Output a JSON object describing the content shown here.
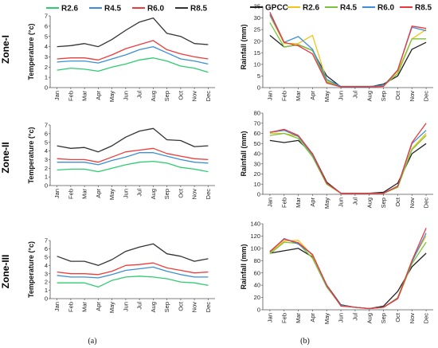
{
  "colors": {
    "R2.6": "#2ecc71",
    "R4.5": "#d9c11a",
    "R6.0": "#ee3b3b",
    "R8.5": "#333333",
    "R4.5_rain": "#7cc23a",
    "R6.0_rain": "#3a8fd8",
    "R8.5_rain": "#e8383d",
    "GPCC": "#222222",
    "R2.6_rain": "#f2c318",
    "temp_R2.6": "#2ecc71",
    "temp_R4.5": "#3a8fd8",
    "temp_R6.0": "#ee3b3b",
    "temp_R8.5": "#333333"
  },
  "legend_a": [
    {
      "name": "R2.6",
      "color": "#2ecc71"
    },
    {
      "name": "R4.5",
      "color": "#3a8fd8"
    },
    {
      "name": "R6.0",
      "color": "#ee3b3b"
    },
    {
      "name": "R8.5",
      "color": "#333333"
    }
  ],
  "legend_b": [
    {
      "name": "GPCC",
      "color": "#222222"
    },
    {
      "name": "R2.6",
      "color": "#f2c318"
    },
    {
      "name": "R4.5",
      "color": "#7cc23a"
    },
    {
      "name": "R6.0",
      "color": "#3a8fd8"
    },
    {
      "name": "R8.5",
      "color": "#e8383d"
    }
  ],
  "zones": [
    "Zone-I",
    "Zone-II",
    "Zone-III"
  ],
  "captions": {
    "a": "(a)",
    "b": "(b)"
  },
  "chart_data": [
    {
      "type": "line",
      "id": "temp-zone-1",
      "categories": [
        "Jan",
        "Feb",
        "Mar",
        "Apr",
        "May",
        "Jun",
        "Jul",
        "Aug",
        "Sep",
        "Oct",
        "Nov",
        "Dec"
      ],
      "ylabel": "Temperature (°c)",
      "ylim": [
        0,
        7
      ],
      "yticks": [
        0,
        1,
        2,
        3,
        4,
        5,
        6,
        7
      ],
      "series": [
        {
          "name": "R2.6",
          "color": "#2ecc71",
          "values": [
            1.7,
            1.9,
            1.8,
            1.6,
            2.0,
            2.3,
            2.7,
            2.9,
            2.6,
            2.1,
            1.9,
            1.5
          ]
        },
        {
          "name": "R4.5",
          "color": "#3a8fd8",
          "values": [
            2.5,
            2.6,
            2.6,
            2.4,
            2.8,
            3.2,
            3.7,
            4.0,
            3.4,
            2.8,
            2.6,
            2.3
          ]
        },
        {
          "name": "R6.0",
          "color": "#ee3b3b",
          "values": [
            2.8,
            2.9,
            2.9,
            2.7,
            3.2,
            3.8,
            4.2,
            4.6,
            3.7,
            3.3,
            3.0,
            2.8
          ]
        },
        {
          "name": "R8.5",
          "color": "#333333",
          "values": [
            4.0,
            4.1,
            4.3,
            4.0,
            4.7,
            5.6,
            6.4,
            6.8,
            5.3,
            5.0,
            4.3,
            4.2
          ]
        }
      ]
    },
    {
      "type": "line",
      "id": "temp-zone-2",
      "categories": [
        "Jan",
        "Feb",
        "Mar",
        "Apr",
        "May",
        "Jun",
        "Jul",
        "Aug",
        "Sep",
        "Oct",
        "Nov",
        "Dec"
      ],
      "ylabel": "Temperature (°c)",
      "ylim": [
        0,
        7
      ],
      "yticks": [
        0,
        1,
        2,
        3,
        4,
        5,
        6,
        7
      ],
      "series": [
        {
          "name": "R2.6",
          "color": "#2ecc71",
          "values": [
            1.8,
            1.9,
            1.9,
            1.6,
            2.0,
            2.4,
            2.7,
            2.8,
            2.6,
            2.1,
            1.9,
            1.6
          ]
        },
        {
          "name": "R4.5",
          "color": "#3a8fd8",
          "values": [
            2.7,
            2.7,
            2.7,
            2.4,
            2.9,
            3.3,
            3.8,
            3.8,
            3.4,
            3.0,
            2.7,
            2.6
          ]
        },
        {
          "name": "R6.0",
          "color": "#ee3b3b",
          "values": [
            3.1,
            3.0,
            3.0,
            2.7,
            3.3,
            3.9,
            4.1,
            4.3,
            3.7,
            3.4,
            3.1,
            3.0
          ]
        },
        {
          "name": "R8.5",
          "color": "#333333",
          "values": [
            4.6,
            4.3,
            4.4,
            3.9,
            4.6,
            5.6,
            6.3,
            6.6,
            5.3,
            5.2,
            4.5,
            4.6
          ]
        }
      ]
    },
    {
      "type": "line",
      "id": "temp-zone-3",
      "categories": [
        "Jan",
        "Feb",
        "Mar",
        "Apr",
        "May",
        "Jun",
        "Jul",
        "Aug",
        "Sep",
        "Oct",
        "Nov",
        "Dec"
      ],
      "ylabel": "Temperature (°c)",
      "ylim": [
        0,
        7
      ],
      "yticks": [
        0,
        1,
        2,
        3,
        4,
        5,
        6,
        7
      ],
      "series": [
        {
          "name": "R2.6",
          "color": "#2ecc71",
          "values": [
            1.9,
            1.9,
            1.9,
            1.4,
            2.2,
            2.6,
            2.7,
            2.6,
            2.4,
            2.0,
            1.9,
            1.6
          ]
        },
        {
          "name": "R4.5",
          "color": "#3a8fd8",
          "values": [
            2.8,
            2.6,
            2.6,
            2.5,
            2.9,
            3.4,
            3.6,
            3.8,
            3.3,
            2.9,
            2.6,
            2.6
          ]
        },
        {
          "name": "R6.0",
          "color": "#ee3b3b",
          "values": [
            3.2,
            3.0,
            3.0,
            2.9,
            3.3,
            4.0,
            4.1,
            4.3,
            3.7,
            3.4,
            3.1,
            3.2
          ]
        },
        {
          "name": "R8.5",
          "color": "#333333",
          "values": [
            5.1,
            4.5,
            4.5,
            4.0,
            4.7,
            5.7,
            6.2,
            6.6,
            5.4,
            5.1,
            4.5,
            4.8
          ]
        }
      ]
    },
    {
      "type": "line",
      "id": "rain-zone-1",
      "categories": [
        "Jan",
        "Feb",
        "Mar",
        "Apr",
        "May",
        "Jun",
        "Jul",
        "Aug",
        "Sep",
        "Oct",
        "Nov",
        "Dec"
      ],
      "ylabel": "Rainfall (mm)",
      "ylim": [
        0,
        35
      ],
      "yticks": [
        0,
        5,
        10,
        15,
        20,
        25,
        30,
        35
      ],
      "series": [
        {
          "name": "GPCC",
          "color": "#222222",
          "values": [
            22.5,
            17.5,
            18.5,
            16.0,
            5.0,
            0.3,
            0.3,
            0.3,
            1.5,
            5.0,
            16.5,
            19.5
          ]
        },
        {
          "name": "R2.6",
          "color": "#f2c318",
          "values": [
            31.0,
            19.0,
            19.0,
            22.5,
            3.0,
            0.5,
            0.5,
            0.5,
            0.8,
            7.0,
            21.0,
            25.0
          ]
        },
        {
          "name": "R4.5",
          "color": "#7cc23a",
          "values": [
            28.0,
            17.5,
            18.5,
            16.0,
            2.5,
            0.5,
            0.5,
            0.5,
            0.8,
            6.0,
            21.0,
            21.0
          ]
        },
        {
          "name": "R6.0",
          "color": "#3a8fd8",
          "values": [
            31.5,
            19.5,
            22.0,
            16.5,
            3.5,
            0.5,
            0.5,
            0.5,
            0.8,
            7.5,
            26.0,
            24.5
          ]
        },
        {
          "name": "R8.5",
          "color": "#e8383d",
          "values": [
            32.5,
            19.5,
            18.0,
            14.5,
            2.0,
            0.3,
            0.3,
            0.3,
            0.5,
            7.5,
            26.5,
            25.5
          ]
        }
      ]
    },
    {
      "type": "line",
      "id": "rain-zone-2",
      "categories": [
        "Jan",
        "Feb",
        "Mar",
        "Apr",
        "May",
        "Jun",
        "Jul",
        "Aug",
        "Sep",
        "Oct",
        "Nov",
        "Dec"
      ],
      "ylabel": "Rainfall (mm)",
      "ylim": [
        0,
        80
      ],
      "yticks": [
        0,
        10,
        20,
        30,
        40,
        50,
        60,
        70,
        80
      ],
      "series": [
        {
          "name": "GPCC",
          "color": "#222222",
          "values": [
            53,
            51,
            53,
            40,
            12,
            1,
            1,
            1,
            2,
            11,
            40,
            50
          ]
        },
        {
          "name": "R2.6",
          "color": "#f2c318",
          "values": [
            60,
            60,
            57,
            38,
            10,
            1,
            1,
            1,
            1,
            7,
            45,
            60
          ]
        },
        {
          "name": "R4.5",
          "color": "#7cc23a",
          "values": [
            58,
            60,
            55,
            37,
            10,
            1,
            1,
            1,
            1,
            7,
            44,
            58
          ]
        },
        {
          "name": "R6.0",
          "color": "#3a8fd8",
          "values": [
            61,
            63,
            57,
            39,
            11,
            1,
            1,
            1,
            1,
            8,
            50,
            63
          ]
        },
        {
          "name": "R8.5",
          "color": "#e8383d",
          "values": [
            61,
            64,
            58,
            40,
            11,
            1,
            1,
            1,
            1,
            8,
            51,
            70
          ]
        }
      ]
    },
    {
      "type": "line",
      "id": "rain-zone-3",
      "categories": [
        "Jan",
        "Feb",
        "Mar",
        "Apr",
        "May",
        "Jun",
        "Jul",
        "Aug",
        "Sep",
        "Oct",
        "Nov",
        "Dec"
      ],
      "ylabel": "Rainfall (mm)",
      "ylim": [
        0,
        140
      ],
      "yticks": [
        0,
        20,
        40,
        60,
        80,
        100,
        120,
        140
      ],
      "series": [
        {
          "name": "GPCC",
          "color": "#222222",
          "values": [
            92,
            96,
            100,
            86,
            40,
            8,
            4,
            2,
            6,
            30,
            70,
            92
          ]
        },
        {
          "name": "R2.6",
          "color": "#f2c318",
          "values": [
            93,
            112,
            113,
            88,
            38,
            7,
            4,
            2,
            4,
            20,
            80,
            120
          ]
        },
        {
          "name": "R4.5",
          "color": "#7cc23a",
          "values": [
            91,
            110,
            108,
            84,
            37,
            7,
            4,
            2,
            4,
            18,
            75,
            110
          ]
        },
        {
          "name": "R6.0",
          "color": "#3a8fd8",
          "values": [
            94,
            116,
            107,
            90,
            39,
            7,
            4,
            2,
            4,
            19,
            78,
            125
          ]
        },
        {
          "name": "R8.5",
          "color": "#e8383d",
          "values": [
            95,
            115,
            109,
            90,
            40,
            6,
            4,
            2,
            4,
            18,
            80,
            133
          ]
        }
      ]
    }
  ]
}
